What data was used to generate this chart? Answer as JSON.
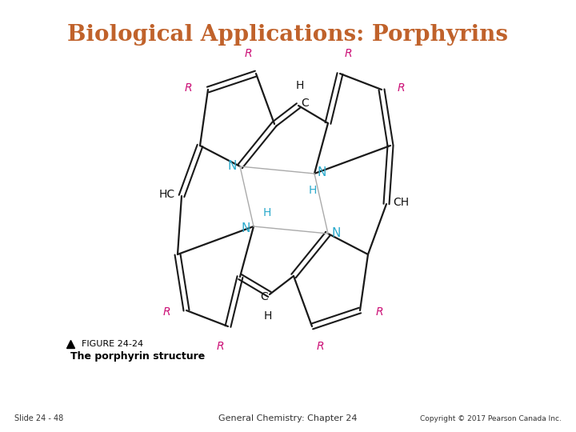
{
  "title": "Biological Applications: Porphyrins",
  "title_color": "#C0622B",
  "title_fontsize": 20,
  "bg_color": "#FFFFFF",
  "figure_caption": "FIGURE 24-24",
  "figure_caption2": "The porphyrin structure",
  "footer_left": "Slide 24 - 48",
  "footer_center": "General Chemistry: Chapter 24",
  "footer_right": "Copyright © 2017 Pearson Canada Inc.",
  "N_color": "#2BAACC",
  "R_color": "#CC1177",
  "bond_color": "#1a1a1a",
  "label_color": "#111111"
}
